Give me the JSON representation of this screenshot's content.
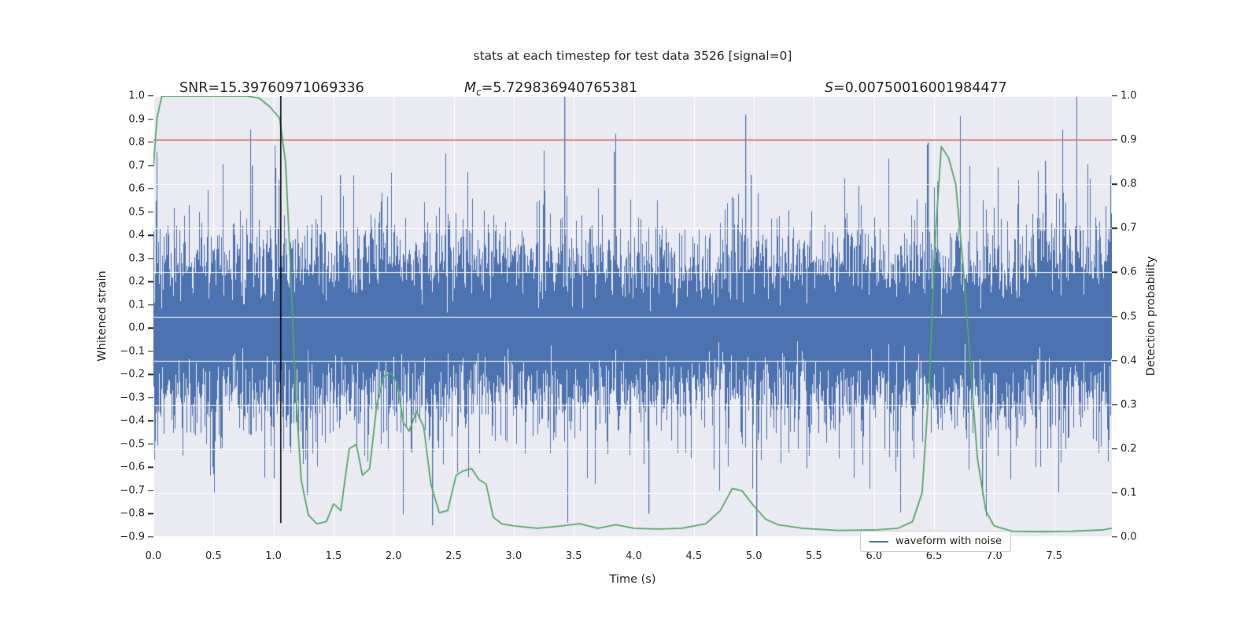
{
  "figure": {
    "title": "stats at each timestep for test data 3526 [signal=0]",
    "background": "#ffffff",
    "plot_bg": "#eaeaf2",
    "grid_color": "#ffffff",
    "text_color": "#262626"
  },
  "annotations": {
    "snr": "SNR=15.39760971069336",
    "mc_symbol": "M",
    "mc_subscript": "c",
    "mc_value": "=5.729836940765381",
    "s_symbol": "S",
    "s_value": "=0.00750016001984477"
  },
  "axes": {
    "x": {
      "label": "Time (s)",
      "min": 0.0,
      "max": 7.98,
      "ticks": [
        0.0,
        0.5,
        1.0,
        1.5,
        2.0,
        2.5,
        3.0,
        3.5,
        4.0,
        4.5,
        5.0,
        5.5,
        6.0,
        6.5,
        7.0,
        7.5
      ]
    },
    "y_left": {
      "label": "Whitened strain",
      "min": -0.9,
      "max": 1.0,
      "ticks": [
        1.0,
        0.9,
        0.8,
        0.7,
        0.6,
        0.5,
        0.4,
        0.3,
        0.2,
        0.1,
        0.0,
        -0.1,
        -0.2,
        -0.3,
        -0.4,
        -0.5,
        -0.6,
        -0.7,
        -0.8,
        -0.9
      ]
    },
    "y_right": {
      "label": "Detection probability",
      "min": 0.0,
      "max": 1.0,
      "ticks": [
        1.0,
        0.9,
        0.8,
        0.7,
        0.6,
        0.5,
        0.4,
        0.3,
        0.2,
        0.1,
        0.0
      ]
    }
  },
  "legend": {
    "position": "lower right",
    "items": [
      {
        "label": "waveform with noise",
        "color": "#4c72b0"
      }
    ]
  },
  "chart_data": {
    "type": "line",
    "title": "stats at each timestep for test data 3526 [signal=0]",
    "xlabel": "Time (s)",
    "ylabel_left": "Whitened strain",
    "ylabel_right": "Detection probability",
    "x_range": [
      0.0,
      7.98
    ],
    "y_left_range": [
      -0.9,
      1.0
    ],
    "y_right_range": [
      0.0,
      1.0
    ],
    "grid": "horizontal lines at right-axis 0.1 steps over data, vertical lines at 0.5 s steps under data",
    "stats": {
      "snr": 15.39760971069336,
      "chirp_mass": 5.729836940765381,
      "s": 0.00750016001984477
    },
    "series": [
      {
        "name": "waveform with noise",
        "axis": "left",
        "color": "#4c72b0",
        "kind": "noise-envelope",
        "seed": 3526,
        "sigma_core": 0.17,
        "sigma_tail": 0.3,
        "tail_frac": 0.08,
        "samples_per_column": 13,
        "spikes": [
          [
            0.82,
            0.7
          ],
          [
            1.55,
            0.66
          ],
          [
            3.42,
            1.0
          ],
          [
            3.83,
            0.76
          ],
          [
            4.93,
            0.92
          ],
          [
            4.97,
            0.66
          ],
          [
            6.45,
            0.8
          ],
          [
            7.42,
            0.72
          ],
          [
            1.28,
            -0.72
          ],
          [
            2.32,
            -0.85
          ],
          [
            4.12,
            -0.8
          ],
          [
            5.02,
            -0.95
          ],
          [
            6.9,
            -0.72
          ]
        ]
      },
      {
        "name": "detection probability",
        "axis": "right",
        "color": "#55a868",
        "kind": "line",
        "points": [
          [
            0.0,
            0.84
          ],
          [
            0.03,
            0.95
          ],
          [
            0.07,
            1.0
          ],
          [
            0.3,
            1.0
          ],
          [
            0.55,
            1.0
          ],
          [
            0.78,
            1.0
          ],
          [
            0.88,
            0.995
          ],
          [
            0.97,
            0.975
          ],
          [
            1.05,
            0.95
          ],
          [
            1.1,
            0.85
          ],
          [
            1.14,
            0.62
          ],
          [
            1.18,
            0.35
          ],
          [
            1.23,
            0.13
          ],
          [
            1.29,
            0.05
          ],
          [
            1.36,
            0.03
          ],
          [
            1.44,
            0.035
          ],
          [
            1.5,
            0.075
          ],
          [
            1.56,
            0.06
          ],
          [
            1.63,
            0.2
          ],
          [
            1.69,
            0.21
          ],
          [
            1.74,
            0.14
          ],
          [
            1.8,
            0.155
          ],
          [
            1.86,
            0.3
          ],
          [
            1.92,
            0.365
          ],
          [
            1.98,
            0.37
          ],
          [
            2.03,
            0.35
          ],
          [
            2.08,
            0.26
          ],
          [
            2.13,
            0.24
          ],
          [
            2.19,
            0.285
          ],
          [
            2.25,
            0.25
          ],
          [
            2.31,
            0.12
          ],
          [
            2.38,
            0.055
          ],
          [
            2.45,
            0.06
          ],
          [
            2.52,
            0.14
          ],
          [
            2.58,
            0.15
          ],
          [
            2.65,
            0.155
          ],
          [
            2.71,
            0.13
          ],
          [
            2.77,
            0.12
          ],
          [
            2.83,
            0.045
          ],
          [
            2.9,
            0.03
          ],
          [
            3.0,
            0.025
          ],
          [
            3.2,
            0.02
          ],
          [
            3.4,
            0.025
          ],
          [
            3.55,
            0.03
          ],
          [
            3.7,
            0.02
          ],
          [
            3.85,
            0.028
          ],
          [
            4.0,
            0.02
          ],
          [
            4.2,
            0.018
          ],
          [
            4.4,
            0.02
          ],
          [
            4.6,
            0.03
          ],
          [
            4.72,
            0.06
          ],
          [
            4.82,
            0.11
          ],
          [
            4.9,
            0.105
          ],
          [
            5.0,
            0.07
          ],
          [
            5.1,
            0.04
          ],
          [
            5.2,
            0.028
          ],
          [
            5.4,
            0.02
          ],
          [
            5.7,
            0.015
          ],
          [
            6.0,
            0.016
          ],
          [
            6.2,
            0.02
          ],
          [
            6.32,
            0.035
          ],
          [
            6.4,
            0.1
          ],
          [
            6.46,
            0.35
          ],
          [
            6.51,
            0.68
          ],
          [
            6.56,
            0.885
          ],
          [
            6.62,
            0.86
          ],
          [
            6.68,
            0.8
          ],
          [
            6.74,
            0.62
          ],
          [
            6.8,
            0.4
          ],
          [
            6.86,
            0.18
          ],
          [
            6.93,
            0.06
          ],
          [
            7.0,
            0.025
          ],
          [
            7.15,
            0.013
          ],
          [
            7.4,
            0.012
          ],
          [
            7.65,
            0.013
          ],
          [
            7.9,
            0.016
          ],
          [
            7.98,
            0.02
          ]
        ]
      }
    ],
    "threshold_line": {
      "axis": "right",
      "value": 0.9,
      "color": "#c44e52"
    },
    "marker_line": {
      "x": 1.06,
      "color": "#000000",
      "y_span_strain": [
        -0.84,
        1.0
      ]
    }
  }
}
